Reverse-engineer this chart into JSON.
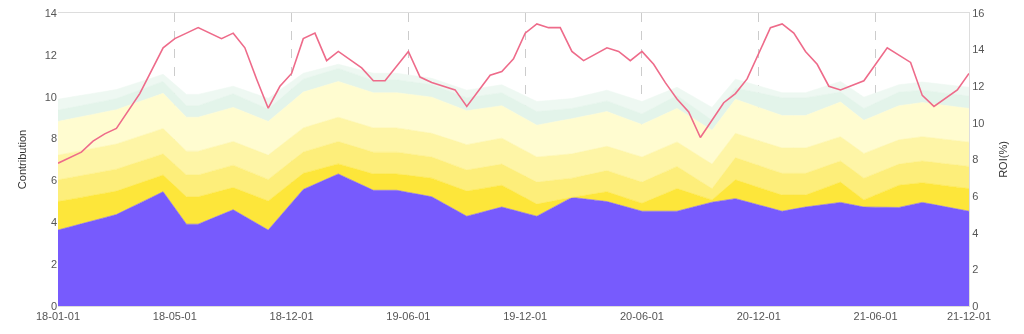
{
  "chart_data": {
    "type": "area",
    "stacked": true,
    "ylabel": "Contribution",
    "y2label": "ROI(%)",
    "grid": "x",
    "categories": [
      "18-01-01",
      null,
      null,
      null,
      null,
      null,
      null,
      null,
      null,
      null,
      "18-05-01",
      null,
      null,
      null,
      null,
      null,
      null,
      null,
      null,
      null,
      "18-12-01",
      null,
      null,
      null,
      null,
      null,
      null,
      null,
      null,
      null,
      "19-06-01",
      null,
      null,
      null,
      null,
      null,
      null,
      null,
      null,
      null,
      "19-12-01",
      null,
      null,
      null,
      null,
      null,
      null,
      null,
      null,
      null,
      "20-06-01",
      null,
      null,
      null,
      null,
      null,
      null,
      null,
      null,
      null,
      "20-12-01",
      null,
      null,
      null,
      null,
      null,
      null,
      null,
      null,
      null,
      "21-06-01",
      null,
      null,
      null,
      null,
      null,
      null,
      null,
      "21-12-01"
    ],
    "ylim": [
      0,
      14
    ],
    "yticks": [
      0,
      2,
      4,
      6,
      8,
      10,
      12,
      14
    ],
    "y2lim": [
      0,
      16
    ],
    "y2ticks": [
      0,
      2,
      4,
      6,
      8,
      10,
      12,
      14,
      16
    ],
    "series": [
      {
        "color": "#775bfd",
        "values": [
          3.63,
          null,
          null,
          null,
          null,
          4.37,
          null,
          null,
          null,
          5.46,
          null,
          3.91,
          3.91,
          null,
          null,
          4.6,
          null,
          null,
          3.63,
          null,
          null,
          5.57,
          null,
          null,
          6.31,
          null,
          null,
          5.53,
          null,
          5.53,
          null,
          null,
          5.22,
          null,
          null,
          4.29,
          null,
          null,
          4.73,
          null,
          null,
          4.29,
          null,
          null,
          5.19,
          null,
          null,
          4.99,
          null,
          null,
          4.53,
          null,
          null,
          4.53,
          null,
          null,
          4.96,
          null,
          5.13,
          null,
          null,
          null,
          4.53,
          null,
          4.73,
          null,
          null,
          4.95,
          null,
          4.73,
          null,
          null,
          4.71,
          null,
          4.95,
          null,
          null,
          null,
          4.53
        ]
      },
      {
        "color": "#fde63a",
        "values": [
          1.36,
          null,
          null,
          null,
          null,
          1.12,
          null,
          null,
          null,
          0.8,
          null,
          1.31,
          1.31,
          null,
          null,
          1.06,
          null,
          null,
          1.39,
          null,
          null,
          0.77,
          null,
          null,
          0.48,
          null,
          null,
          0.78,
          null,
          0.78,
          null,
          null,
          0.89,
          null,
          null,
          1.2,
          null,
          null,
          1.04,
          null,
          null,
          0.58,
          null,
          null,
          0,
          null,
          null,
          0.47,
          null,
          null,
          0.38,
          null,
          null,
          1.08,
          null,
          null,
          0.11,
          null,
          0.9,
          null,
          null,
          null,
          0.77,
          null,
          0.57,
          null,
          null,
          0.97,
          null,
          0.34,
          null,
          null,
          1.06,
          null,
          0.94,
          null,
          null,
          null,
          1.08
        ]
      },
      {
        "color": "#fdee7a",
        "values": [
          1.04,
          null,
          null,
          null,
          null,
          1.05,
          null,
          null,
          null,
          1.01,
          null,
          1.04,
          1.04,
          null,
          null,
          1.07,
          null,
          null,
          1.03,
          null,
          null,
          1.02,
          null,
          null,
          1.07,
          null,
          null,
          1.04,
          null,
          1.04,
          null,
          null,
          1.01,
          null,
          null,
          1.01,
          null,
          null,
          1.01,
          null,
          null,
          1.05,
          null,
          null,
          0.92,
          null,
          null,
          1.01,
          null,
          null,
          1.01,
          null,
          null,
          1.06,
          null,
          null,
          0.54,
          null,
          1.06,
          null,
          null,
          null,
          1.04,
          null,
          1.04,
          null,
          null,
          1.01,
          null,
          1.04,
          null,
          null,
          1.01,
          null,
          1.04,
          null,
          null,
          null,
          1.06
        ]
      },
      {
        "color": "#fef5a6",
        "values": [
          1.18,
          null,
          null,
          null,
          null,
          1.2,
          null,
          null,
          null,
          1.21,
          null,
          1.14,
          1.14,
          null,
          null,
          1.13,
          null,
          null,
          1.16,
          null,
          null,
          1.15,
          null,
          null,
          1.16,
          null,
          null,
          1.16,
          null,
          1.16,
          null,
          null,
          1.13,
          null,
          null,
          1.21,
          null,
          null,
          1.24,
          null,
          null,
          1.2,
          null,
          null,
          1.16,
          null,
          null,
          1.16,
          null,
          null,
          1.2,
          null,
          null,
          1.17,
          null,
          null,
          1.17,
          null,
          1.16,
          null,
          null,
          null,
          1.21,
          null,
          1.21,
          null,
          null,
          1.16,
          null,
          1.18,
          null,
          null,
          1.16,
          null,
          1.16,
          null,
          null,
          null,
          1.16
        ]
      },
      {
        "color": "#fffcd0",
        "values": [
          1.61,
          null,
          null,
          null,
          null,
          1.64,
          null,
          null,
          null,
          1.68,
          null,
          1.62,
          1.62,
          null,
          null,
          1.63,
          null,
          null,
          1.61,
          null,
          null,
          1.71,
          null,
          null,
          1.71,
          null,
          null,
          1.68,
          null,
          1.68,
          null,
          null,
          1.73,
          null,
          null,
          1.62,
          null,
          null,
          1.55,
          null,
          null,
          1.52,
          null,
          null,
          1.68,
          null,
          null,
          1.66,
          null,
          null,
          1.55,
          null,
          null,
          1.6,
          null,
          null,
          1.62,
          null,
          1.63,
          null,
          null,
          null,
          1.55,
          null,
          1.55,
          null,
          null,
          1.66,
          null,
          1.58,
          null,
          null,
          1.63,
          null,
          1.63,
          null,
          null,
          null,
          1.61
        ]
      },
      {
        "color": "#e3f4ea",
        "values": [
          0.54,
          null,
          null,
          null,
          null,
          0.53,
          null,
          null,
          null,
          0.57,
          null,
          0.55,
          0.55,
          null,
          null,
          0.65,
          null,
          null,
          0.59,
          null,
          null,
          0.62,
          null,
          null,
          0.62,
          null,
          null,
          0.59,
          null,
          0.62,
          null,
          null,
          0.59,
          null,
          null,
          0.62,
          null,
          null,
          0.62,
          null,
          null,
          0.65,
          null,
          null,
          0.49,
          null,
          null,
          0.51,
          null,
          null,
          0.51,
          null,
          null,
          0.62,
          null,
          null,
          0.47,
          null,
          0.54,
          null,
          null,
          null,
          0.85,
          null,
          0.85,
          null,
          null,
          0.47,
          null,
          0.57,
          null,
          null,
          0.65,
          null,
          0.59,
          null,
          null,
          null,
          0.59
        ]
      },
      {
        "color": "#eef8f2",
        "values": [
          0.52,
          null,
          null,
          null,
          null,
          0.43,
          null,
          null,
          null,
          0.34,
          null,
          0.54,
          0.54,
          null,
          null,
          0.36,
          null,
          null,
          0.51,
          null,
          null,
          0.28,
          null,
          null,
          0.2,
          null,
          null,
          0.34,
          null,
          0.31,
          null,
          null,
          0.31,
          null,
          null,
          0.36,
          null,
          null,
          0.38,
          null,
          null,
          0.48,
          null,
          null,
          0.47,
          null,
          null,
          0.51,
          null,
          null,
          0.59,
          null,
          null,
          0.39,
          null,
          null,
          0.62,
          null,
          0.42,
          null,
          null,
          null,
          0.24,
          null,
          0.24,
          null,
          null,
          0.51,
          null,
          0.54,
          null,
          null,
          0.35,
          null,
          0.39,
          null,
          null,
          null,
          0.42
        ]
      },
      {
        "type": "line",
        "axis": "y2",
        "color": "#ee6b8a",
        "values": [
          7.8,
          null,
          8.4,
          9.0,
          9.4,
          9.7,
          null,
          11.6,
          null,
          14.1,
          14.6,
          14.9,
          15.2,
          null,
          14.6,
          14.9,
          14.1,
          12.4,
          10.8,
          12.0,
          12.7,
          14.6,
          14.9,
          13.4,
          13.9,
          null,
          13.0,
          12.3,
          12.3,
          null,
          13.9,
          12.5,
          12.2,
          null,
          11.8,
          10.9,
          null,
          12.6,
          12.8,
          13.5,
          14.9,
          15.4,
          15.2,
          15.2,
          13.9,
          13.4,
          null,
          14.1,
          13.9,
          13.4,
          13.9,
          13.2,
          12.2,
          11.3,
          10.6,
          9.2,
          null,
          11.1,
          11.6,
          12.4,
          null,
          15.2,
          15.4,
          14.9,
          13.9,
          13.2,
          12.0,
          11.8,
          null,
          12.3,
          null,
          14.1,
          null,
          13.3,
          11.5,
          10.9,
          null,
          11.8,
          12.7
        ]
      }
    ]
  }
}
